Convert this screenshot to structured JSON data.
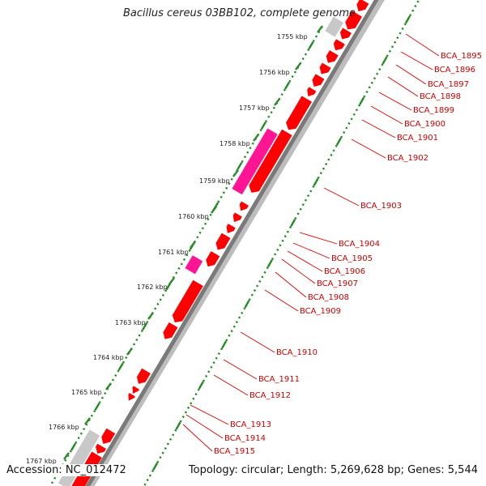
{
  "title": "Bacillus cereus 03BB102, complete genome",
  "accession": "Accession: NC_012472",
  "topology": "Topology: circular; Length: 5,269,628 bp; Genes: 5,544",
  "ticks": [
    {
      "label": "1755 kbp"
    },
    {
      "label": "1756 kbp"
    },
    {
      "label": "1757 kbp"
    },
    {
      "label": "1758 kbp"
    },
    {
      "label": "1759 kbp"
    },
    {
      "label": "1760 kbp"
    },
    {
      "label": "1761 kbp"
    },
    {
      "label": "1762 kbp"
    },
    {
      "label": "1763 kbp"
    },
    {
      "label": "1764 kbp"
    },
    {
      "label": "1765 kbp"
    },
    {
      "label": "1766 kbp"
    },
    {
      "label": "1767 kbp"
    }
  ],
  "genes": [
    {
      "label": "BCA_1895",
      "color": "#ff0000"
    },
    {
      "label": "BCA_1896",
      "color": "#ff0000"
    },
    {
      "label": "BCA_1897",
      "color": "#ff0000"
    },
    {
      "label": "BCA_1898",
      "color": "#ff0000"
    },
    {
      "label": "BCA_1899",
      "color": "#ff0000"
    },
    {
      "label": "BCA_1900",
      "color": "#ff0000"
    },
    {
      "label": "BCA_1901",
      "color": "#ff0000"
    },
    {
      "label": "BCA_1902",
      "color": "#ff0000"
    },
    {
      "label": "BCA_1903",
      "color": "#ff1493"
    },
    {
      "label": "BCA_1904",
      "color": "#ff0000"
    },
    {
      "label": "BCA_1905",
      "color": "#ff0000"
    },
    {
      "label": "BCA_1906",
      "color": "#ff0000"
    },
    {
      "label": "BCA_1907",
      "color": "#ff0000"
    },
    {
      "label": "BCA_1908",
      "color": "#ff0000"
    },
    {
      "label": "BCA_1909",
      "color": "#ff1493"
    },
    {
      "label": "BCA_1910",
      "color": "#ff0000"
    },
    {
      "label": "BCA_1911",
      "color": "#ff0000"
    },
    {
      "label": "BCA_1912",
      "color": "#ff0000"
    },
    {
      "label": "BCA_1913",
      "color": "#ff0000"
    },
    {
      "label": "BCA_1914",
      "color": "#ff0000"
    },
    {
      "label": "BCA_1915",
      "color": "#ff0000"
    }
  ],
  "colors": {
    "backbone": "#7a7a7a",
    "cds": "#ff0000",
    "highlight": "#ff1493",
    "other": "#c8c8c8",
    "gc_ticks": "#228b22",
    "label_text": "#cc0000"
  }
}
